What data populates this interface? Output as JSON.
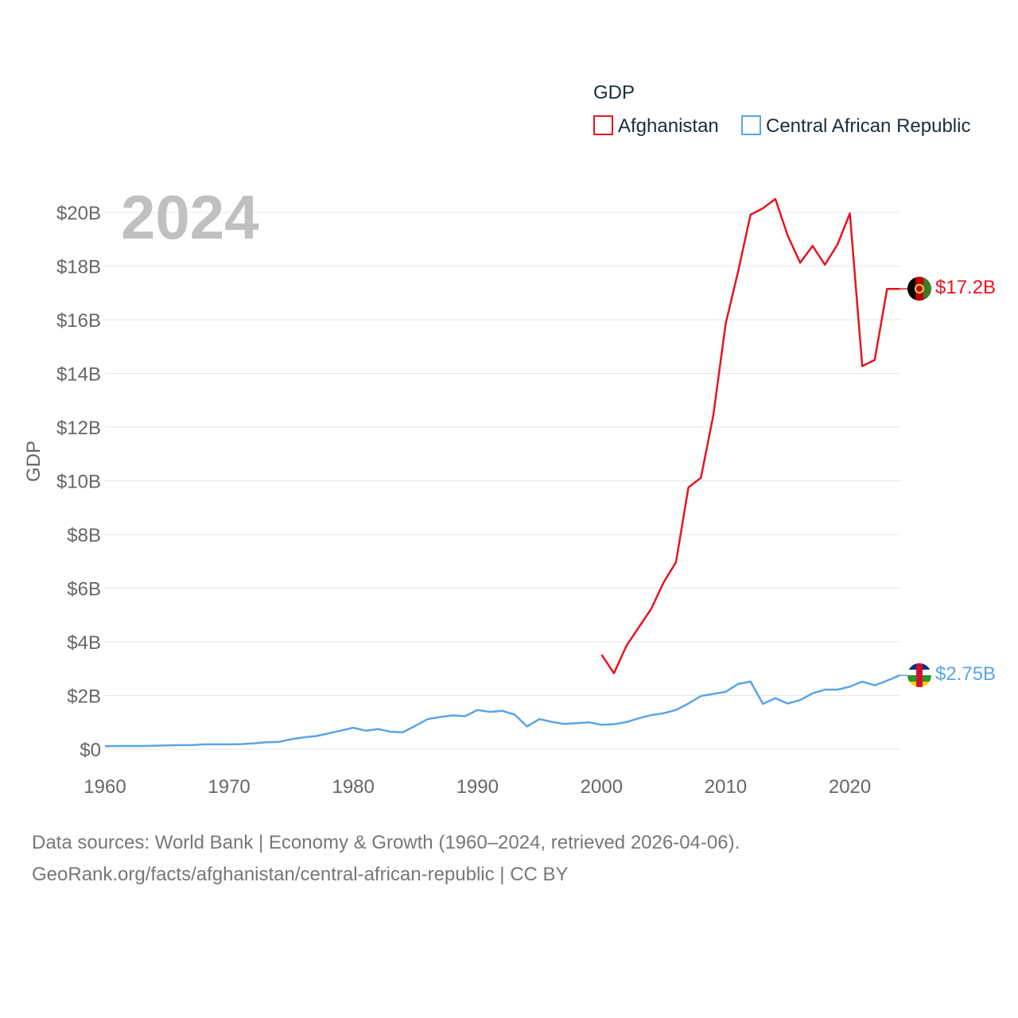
{
  "chart_data": {
    "type": "line",
    "title": "GDP",
    "ylabel": "GDP",
    "xlabel": "",
    "year_label": "2024",
    "xlim": [
      1960,
      2024
    ],
    "ylim": [
      0,
      20
    ],
    "x_ticks": [
      "1960",
      "1970",
      "1980",
      "1990",
      "2000",
      "2010",
      "2020"
    ],
    "y_ticks": [
      "$0",
      "$2B",
      "$4B",
      "$6B",
      "$8B",
      "$10B",
      "$12B",
      "$14B",
      "$16B",
      "$18B",
      "$20B"
    ],
    "legend": [
      "Afghanistan",
      "Central African Republic"
    ],
    "series": [
      {
        "name": "Afghanistan",
        "color": "#e8141e",
        "unit": "billion USD",
        "end_label": "$17.2B",
        "flag": "afghanistan-flag-icon",
        "points": [
          [
            2000,
            3.52
          ],
          [
            2001,
            2.83
          ],
          [
            2002,
            3.85
          ],
          [
            2003,
            4.54
          ],
          [
            2004,
            5.23
          ],
          [
            2005,
            6.21
          ],
          [
            2006,
            6.97
          ],
          [
            2007,
            9.75
          ],
          [
            2008,
            10.11
          ],
          [
            2009,
            12.44
          ],
          [
            2010,
            15.86
          ],
          [
            2011,
            17.8
          ],
          [
            2012,
            19.91
          ],
          [
            2013,
            20.15
          ],
          [
            2014,
            20.5
          ],
          [
            2015,
            19.13
          ],
          [
            2016,
            18.12
          ],
          [
            2017,
            18.75
          ],
          [
            2018,
            18.05
          ],
          [
            2019,
            18.8
          ],
          [
            2020,
            19.96
          ],
          [
            2021,
            14.27
          ],
          [
            2022,
            14.5
          ],
          [
            2023,
            17.15
          ],
          [
            2024,
            17.15
          ]
        ]
      },
      {
        "name": "Central African Republic",
        "color": "#5aa5e6",
        "unit": "billion USD",
        "end_label": "$2.75B",
        "flag": "central-african-republic-flag-icon",
        "points": [
          [
            1960,
            0.11
          ],
          [
            1961,
            0.12
          ],
          [
            1962,
            0.12
          ],
          [
            1963,
            0.12
          ],
          [
            1964,
            0.13
          ],
          [
            1965,
            0.14
          ],
          [
            1966,
            0.15
          ],
          [
            1967,
            0.15
          ],
          [
            1968,
            0.18
          ],
          [
            1969,
            0.18
          ],
          [
            1970,
            0.18
          ],
          [
            1971,
            0.19
          ],
          [
            1972,
            0.22
          ],
          [
            1973,
            0.26
          ],
          [
            1974,
            0.27
          ],
          [
            1975,
            0.37
          ],
          [
            1976,
            0.44
          ],
          [
            1977,
            0.49
          ],
          [
            1978,
            0.59
          ],
          [
            1979,
            0.69
          ],
          [
            1980,
            0.8
          ],
          [
            1981,
            0.69
          ],
          [
            1982,
            0.75
          ],
          [
            1983,
            0.65
          ],
          [
            1984,
            0.63
          ],
          [
            1985,
            0.87
          ],
          [
            1986,
            1.12
          ],
          [
            1987,
            1.2
          ],
          [
            1988,
            1.26
          ],
          [
            1989,
            1.23
          ],
          [
            1990,
            1.46
          ],
          [
            1991,
            1.39
          ],
          [
            1992,
            1.43
          ],
          [
            1993,
            1.29
          ],
          [
            1994,
            0.85
          ],
          [
            1995,
            1.12
          ],
          [
            1996,
            1.02
          ],
          [
            1997,
            0.94
          ],
          [
            1998,
            0.97
          ],
          [
            1999,
            1.0
          ],
          [
            2000,
            0.91
          ],
          [
            2001,
            0.93
          ],
          [
            2002,
            1.01
          ],
          [
            2003,
            1.15
          ],
          [
            2004,
            1.27
          ],
          [
            2005,
            1.34
          ],
          [
            2006,
            1.46
          ],
          [
            2007,
            1.7
          ],
          [
            2008,
            1.98
          ],
          [
            2009,
            2.06
          ],
          [
            2010,
            2.14
          ],
          [
            2011,
            2.43
          ],
          [
            2012,
            2.52
          ],
          [
            2013,
            1.69
          ],
          [
            2014,
            1.9
          ],
          [
            2015,
            1.7
          ],
          [
            2016,
            1.83
          ],
          [
            2017,
            2.08
          ],
          [
            2018,
            2.22
          ],
          [
            2019,
            2.22
          ],
          [
            2020,
            2.33
          ],
          [
            2021,
            2.52
          ],
          [
            2022,
            2.38
          ],
          [
            2023,
            2.55
          ],
          [
            2024,
            2.75
          ]
        ]
      }
    ]
  },
  "footer": {
    "line1": "Data sources: World Bank | Economy & Growth (1960–2024, retrieved 2026-04-06).",
    "line2": "GeoRank.org/facts/afghanistan/central-african-republic | CC BY"
  }
}
